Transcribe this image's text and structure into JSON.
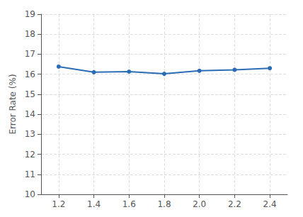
{
  "chart_data": {
    "type": "line",
    "x": [
      1.2,
      1.4,
      1.6,
      1.8,
      2.0,
      2.2,
      2.4
    ],
    "values": [
      16.38,
      16.1,
      16.13,
      16.02,
      16.17,
      16.22,
      16.3
    ],
    "color": "#2a6db5",
    "marker": "circle",
    "ylabel": "Error Rate (%)",
    "xlim": [
      1.1,
      2.5
    ],
    "xticks": [
      1.2,
      1.4,
      1.6,
      1.8,
      {
        "value": 2.0,
        "label": "2.0"
      },
      2.2,
      2.4
    ],
    "ylim": [
      10,
      19
    ],
    "yticks": [
      10,
      11,
      12,
      13,
      14,
      15,
      16,
      17,
      18,
      19
    ],
    "grid": true
  }
}
